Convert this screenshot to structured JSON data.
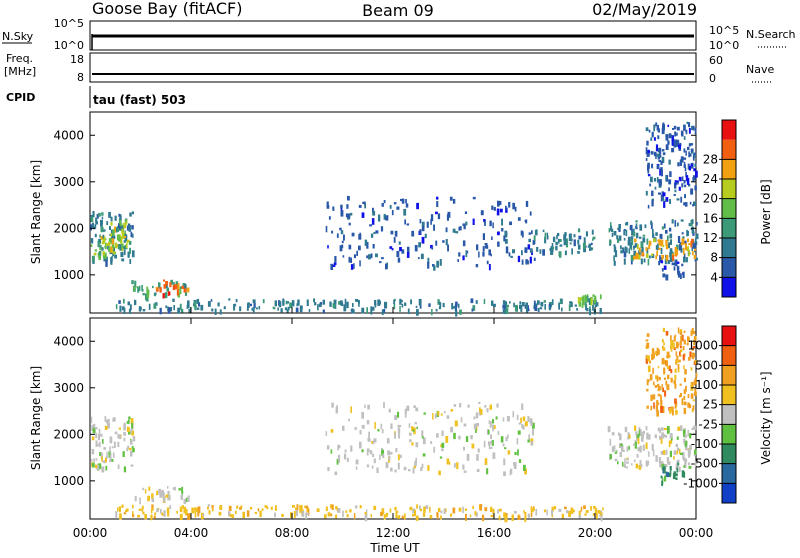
{
  "header": {
    "station": "Goose Bay (fitACF)",
    "beam": "Beam 09",
    "date": "02/May/2019"
  },
  "top_panels": {
    "nsky": {
      "left_label": "N.Sky",
      "left_ticks": [
        "10^5",
        "10^0"
      ],
      "right_label": "N.Search",
      "right_ticks": [
        "10^5",
        "10^0"
      ]
    },
    "freq": {
      "left_label_line1": "Freq.",
      "left_label_line2": "[MHz]",
      "left_ticks": [
        "18",
        "8"
      ],
      "right_label": "Nave",
      "right_ticks": [
        "60",
        "0"
      ]
    },
    "cpid": {
      "label": "CPID",
      "value": "tau (fast) 503"
    }
  },
  "chart_data": [
    {
      "type": "heatmap",
      "name": "power",
      "ylabel": "Slant Range [km]",
      "xlabel": "",
      "ylim": [
        180,
        4500
      ],
      "yticks": [
        "1000",
        "2000",
        "3000",
        "4000"
      ],
      "xlim": [
        0,
        24
      ],
      "colorbar_label": "Power [dB]",
      "colorbar_ticks": [
        "4",
        "8",
        "12",
        "16",
        "20",
        "24",
        "28"
      ],
      "colors": [
        "#1010e8",
        "#2a58a8",
        "#2f7a90",
        "#3d9a78",
        "#62bc48",
        "#b8cc20",
        "#f0a010",
        "#f06010",
        "#e81010"
      ],
      "regions": [
        {
          "t0": 0.0,
          "t1": 1.7,
          "r0": 1300,
          "r1": 2400,
          "level": 2
        },
        {
          "t0": 0.0,
          "t1": 1.0,
          "r0": 1400,
          "r1": 1800,
          "level": 4
        },
        {
          "t0": 0.3,
          "t1": 1.5,
          "r0": 1500,
          "r1": 2200,
          "level": 5
        },
        {
          "t0": 1.6,
          "t1": 3.9,
          "r0": 600,
          "r1": 900,
          "level": 3
        },
        {
          "t0": 2.6,
          "t1": 3.9,
          "r0": 600,
          "r1": 900,
          "level": 7
        },
        {
          "t0": 1.0,
          "t1": 8.0,
          "r0": 250,
          "r1": 500,
          "level": 2
        },
        {
          "t0": 9.3,
          "t1": 17.6,
          "r0": 1200,
          "r1": 2700,
          "level": 1
        },
        {
          "t0": 8.0,
          "t1": 20.3,
          "r0": 250,
          "r1": 500,
          "level": 2
        },
        {
          "t0": 17.5,
          "t1": 20.0,
          "r0": 1500,
          "r1": 2000,
          "level": 2
        },
        {
          "t0": 19.3,
          "t1": 20.3,
          "r0": 400,
          "r1": 600,
          "level": 4
        },
        {
          "t0": 20.5,
          "t1": 24.0,
          "r0": 1300,
          "r1": 2200,
          "level": 2
        },
        {
          "t0": 21.5,
          "t1": 24.0,
          "r0": 1400,
          "r1": 1800,
          "level": 6
        },
        {
          "t0": 22.0,
          "t1": 24.0,
          "r0": 2500,
          "r1": 4300,
          "level": 1
        },
        {
          "t0": 22.5,
          "t1": 23.5,
          "r0": 1000,
          "r1": 1400,
          "level": 1
        }
      ]
    },
    {
      "type": "heatmap",
      "name": "velocity",
      "ylabel": "Slant Range [km]",
      "xlabel": "Time UT",
      "ylim": [
        180,
        4500
      ],
      "yticks": [
        "1000",
        "2000",
        "3000",
        "4000"
      ],
      "xlim": [
        0,
        24
      ],
      "xticks": [
        "00:00",
        "04:00",
        "08:00",
        "12:00",
        "16:00",
        "20:00",
        "00:00"
      ],
      "colorbar_label": "Velocity [m s⁻¹]",
      "colorbar_ticks": [
        "1000",
        "500",
        "100",
        "25",
        "-25",
        "-100",
        "-500",
        "-1000"
      ],
      "colors": [
        "#1040c8",
        "#2a68a0",
        "#2f8a60",
        "#60c040",
        "#c0c0c0",
        "#f0c020",
        "#f0a020",
        "#f06010",
        "#e81010"
      ],
      "regions": [
        {
          "t0": 0.0,
          "t1": 1.7,
          "r0": 1300,
          "r1": 2400,
          "level": 4
        },
        {
          "t0": 1.6,
          "t1": 3.9,
          "r0": 600,
          "r1": 900,
          "level": 4
        },
        {
          "t0": 1.0,
          "t1": 8.0,
          "r0": 250,
          "r1": 500,
          "level": 5
        },
        {
          "t0": 9.3,
          "t1": 17.6,
          "r0": 1200,
          "r1": 2700,
          "level": 4
        },
        {
          "t0": 8.0,
          "t1": 20.3,
          "r0": 250,
          "r1": 500,
          "level": 5
        },
        {
          "t0": 20.5,
          "t1": 24.0,
          "r0": 1300,
          "r1": 2200,
          "level": 4
        },
        {
          "t0": 22.5,
          "t1": 23.5,
          "r0": 1000,
          "r1": 1400,
          "level": 2
        },
        {
          "t0": 22.0,
          "t1": 24.0,
          "r0": 2500,
          "r1": 4300,
          "level": 6
        }
      ]
    }
  ]
}
